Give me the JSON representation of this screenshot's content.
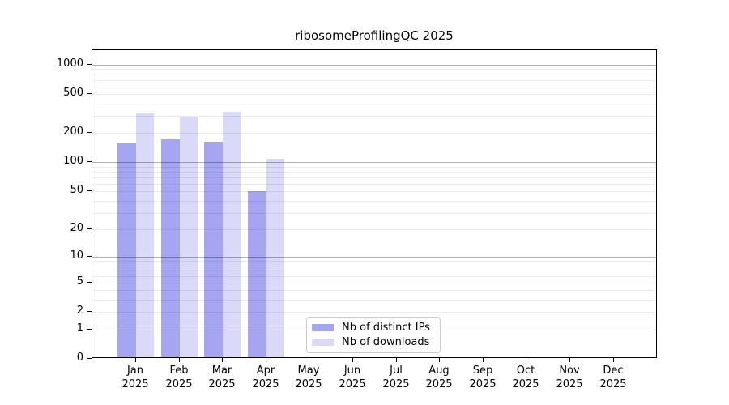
{
  "title": "ribosomeProfilingQC 2025",
  "colors": {
    "bar_distinct_ips": "#a5a5f2",
    "bar_downloads": "#dadaf8",
    "grid_major": "rgba(0,0,0,0.30)",
    "grid_minor": "rgba(0,0,0,0.08)",
    "spine": "#000000"
  },
  "y_axis": {
    "tick_labels": [
      "1000",
      "500",
      "200",
      "100",
      "50",
      "20",
      "10",
      "5",
      "2",
      "1",
      "0"
    ]
  },
  "x_axis": {
    "months": [
      "Jan",
      "Feb",
      "Mar",
      "Apr",
      "May",
      "Jun",
      "Jul",
      "Aug",
      "Sep",
      "Oct",
      "Nov",
      "Dec"
    ],
    "year": "2025"
  },
  "legend": {
    "items": [
      {
        "label": "Nb of distinct IPs",
        "color": "#a5a5f2"
      },
      {
        "label": "Nb of downloads",
        "color": "#dadaf8"
      }
    ]
  },
  "chart_data": {
    "type": "bar",
    "title": "ribosomeProfilingQC 2025",
    "categories": [
      "Jan 2025",
      "Feb 2025",
      "Mar 2025",
      "Apr 2025",
      "May 2025",
      "Jun 2025",
      "Jul 2025",
      "Aug 2025",
      "Sep 2025",
      "Oct 2025",
      "Nov 2025",
      "Dec 2025"
    ],
    "series": [
      {
        "name": "Nb of distinct IPs",
        "color": "#a5a5f2",
        "values": [
          153,
          165,
          157,
          48,
          0,
          0,
          0,
          0,
          0,
          0,
          0,
          0
        ]
      },
      {
        "name": "Nb of downloads",
        "color": "#dadaf8",
        "values": [
          307,
          283,
          318,
          104,
          0,
          0,
          0,
          0,
          0,
          0,
          0,
          0
        ]
      }
    ],
    "yscale": "log1p",
    "y_ticks": [
      0,
      1,
      2,
      5,
      10,
      20,
      50,
      100,
      200,
      500,
      1000
    ],
    "ylim": [
      0,
      1380
    ],
    "grid": "horizontal, major at powers of 10 (darker) plus log minors (faint), drawn over bars",
    "legend_position": "inside axes, lower center-left, white rounded box"
  }
}
